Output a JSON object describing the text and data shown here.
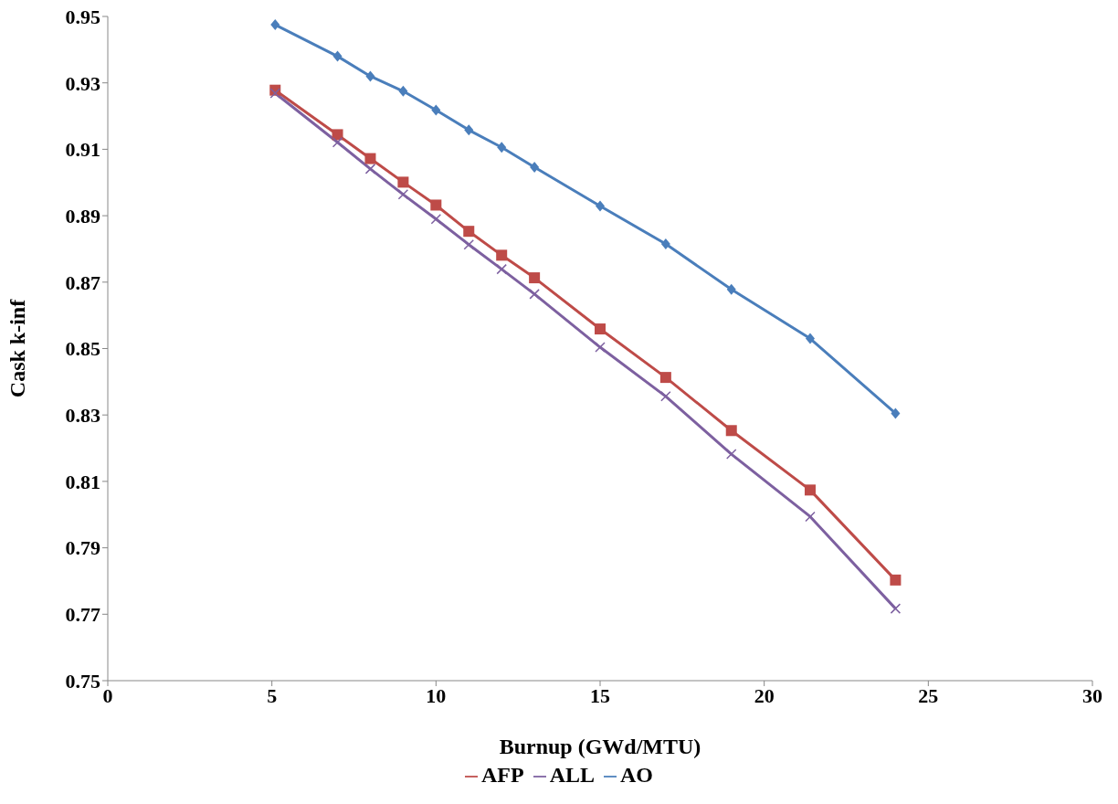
{
  "chart_data": {
    "type": "line",
    "xlabel": "Burnup (GWd/MTU)",
    "ylabel": "Cask k-inf",
    "x": [
      5.1,
      7,
      8,
      9,
      10,
      11,
      12,
      13,
      15,
      17,
      19,
      21.4,
      24
    ],
    "series": [
      {
        "name": "AO",
        "color": "#4a7ebb",
        "marker": "diamond",
        "values": [
          0.9475,
          0.938,
          0.932,
          0.9275,
          0.9218,
          0.9158,
          0.9106,
          0.9046,
          0.8929,
          0.8815,
          0.8678,
          0.853,
          0.8305
        ]
      },
      {
        "name": "AFP",
        "color": "#be4b48",
        "marker": "square",
        "values": [
          0.9278,
          0.9144,
          0.9072,
          0.9001,
          0.8932,
          0.8853,
          0.8781,
          0.8713,
          0.8559,
          0.8413,
          0.8253,
          0.8074,
          0.7803
        ]
      },
      {
        "name": "ALL",
        "color": "#7d60a0",
        "marker": "cross",
        "values": [
          0.9269,
          0.9121,
          0.9041,
          0.8964,
          0.889,
          0.8813,
          0.8739,
          0.8664,
          0.8504,
          0.8356,
          0.8182,
          0.7994,
          0.7717
        ]
      }
    ],
    "xlim": [
      0,
      30
    ],
    "xticks": [
      0,
      5,
      10,
      15,
      20,
      25,
      30
    ],
    "ylim": [
      0.75,
      0.95
    ],
    "yticks": [
      0.75,
      0.77,
      0.79,
      0.81,
      0.83,
      0.85,
      0.87,
      0.89,
      0.91,
      0.93,
      0.95
    ],
    "grid": false,
    "legend": "bottom",
    "line_style": "solid"
  }
}
